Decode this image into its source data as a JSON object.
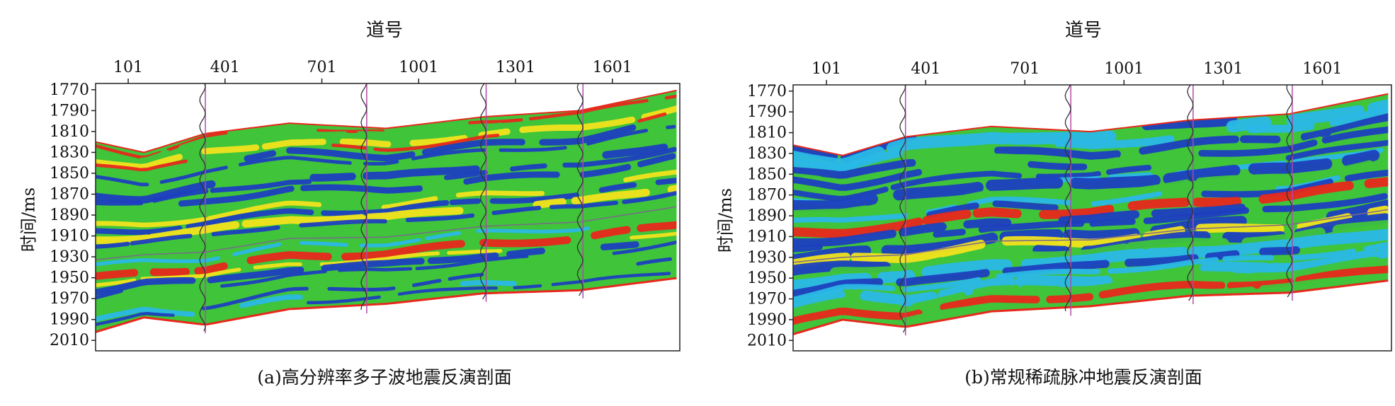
{
  "chart_data": [
    {
      "type": "heatmap",
      "title": "",
      "xlabel": "道号",
      "ylabel": "时间/ms",
      "caption": "(a)高分辨率多子波地震反演剖面",
      "x_ticks": [
        "101",
        "401",
        "701",
        "1001",
        "1301",
        "1601"
      ],
      "x_tick_values": [
        101,
        401,
        701,
        1001,
        1301,
        1601
      ],
      "xlim": [
        0,
        1810
      ],
      "y_ticks": [
        "1770",
        "1790",
        "1810",
        "1830",
        "1850",
        "1870",
        "1890",
        "1910",
        "1930",
        "1950",
        "1970",
        "1990",
        "2010"
      ],
      "y_tick_values": [
        1770,
        1790,
        1810,
        1830,
        1850,
        1870,
        1890,
        1910,
        1930,
        1950,
        1970,
        1990,
        2010
      ],
      "ylim": [
        1764,
        2020
      ],
      "well_traces": [
        340,
        840,
        1210,
        1510
      ],
      "top_boundary": [
        [
          0,
          1820
        ],
        [
          150,
          1830
        ],
        [
          340,
          1812
        ],
        [
          600,
          1802
        ],
        [
          900,
          1807
        ],
        [
          1200,
          1796
        ],
        [
          1500,
          1790
        ],
        [
          1810,
          1770
        ]
      ],
      "bottom_boundary": [
        [
          0,
          2002
        ],
        [
          150,
          1988
        ],
        [
          340,
          1995
        ],
        [
          600,
          1980
        ],
        [
          900,
          1975
        ],
        [
          1200,
          1965
        ],
        [
          1500,
          1962
        ],
        [
          1810,
          1950
        ]
      ],
      "colormap": [
        "#1e3fbf",
        "#2ab8e6",
        "#3fc43a",
        "#f2e31c",
        "#e8281c"
      ],
      "grid": false
    },
    {
      "type": "heatmap",
      "title": "",
      "xlabel": "道号",
      "ylabel": "时间/ms",
      "caption": "(b)常规稀疏脉冲地震反演剖面",
      "x_ticks": [
        "101",
        "401",
        "701",
        "1001",
        "1301",
        "1601"
      ],
      "x_tick_values": [
        101,
        401,
        701,
        1001,
        1301,
        1601
      ],
      "xlim": [
        0,
        1810
      ],
      "y_ticks": [
        "1770",
        "1790",
        "1810",
        "1830",
        "1850",
        "1870",
        "1890",
        "1910",
        "1930",
        "1950",
        "1970",
        "1990",
        "2010"
      ],
      "y_tick_values": [
        1770,
        1790,
        1810,
        1830,
        1850,
        1870,
        1890,
        1910,
        1930,
        1950,
        1970,
        1990,
        2010
      ],
      "ylim": [
        1764,
        2020
      ],
      "well_traces": [
        340,
        840,
        1210,
        1510
      ],
      "top_boundary": [
        [
          0,
          1822
        ],
        [
          150,
          1832
        ],
        [
          340,
          1814
        ],
        [
          600,
          1804
        ],
        [
          900,
          1809
        ],
        [
          1200,
          1798
        ],
        [
          1500,
          1792
        ],
        [
          1810,
          1772
        ]
      ],
      "bottom_boundary": [
        [
          0,
          2004
        ],
        [
          150,
          1990
        ],
        [
          340,
          1997
        ],
        [
          600,
          1982
        ],
        [
          900,
          1977
        ],
        [
          1200,
          1967
        ],
        [
          1500,
          1964
        ],
        [
          1810,
          1952
        ]
      ],
      "colormap": [
        "#1e3fbf",
        "#2ab8e6",
        "#3fc43a",
        "#f2e31c",
        "#e8281c"
      ],
      "grid": false
    }
  ]
}
